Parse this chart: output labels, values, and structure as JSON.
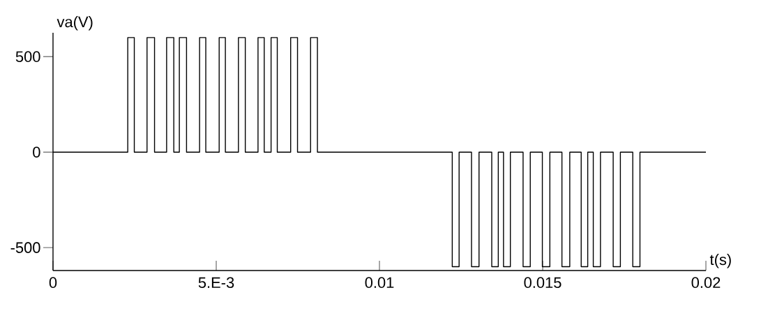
{
  "chart_data": {
    "type": "step",
    "xlabel": "t(s)",
    "ylabel": "va(V)",
    "xlim": [
      0,
      0.02
    ],
    "ylim": [
      -620,
      625
    ],
    "xticks": [
      0,
      {
        "value": 0.005,
        "label": "5.E-3"
      },
      0.01,
      0.015,
      0.02
    ],
    "yticks": [
      -500,
      0,
      500
    ],
    "grid": false,
    "marker": "none",
    "line_style": "solid",
    "series": [
      {
        "color": "#000000",
        "x": [
          0,
          0.00229,
          0.00249,
          0.00288,
          0.00311,
          0.00348,
          0.0037,
          0.00387,
          0.00409,
          0.00449,
          0.00468,
          0.00509,
          0.00528,
          0.00568,
          0.00589,
          0.00628,
          0.00647,
          0.00668,
          0.00687,
          0.00728,
          0.00749,
          0.00789,
          0.0081,
          0.01223,
          0.01244,
          0.01282,
          0.01305,
          0.01344,
          0.01364,
          0.0138,
          0.01401,
          0.0144,
          0.01462,
          0.01499,
          0.01522,
          0.01559,
          0.01583,
          0.01618,
          0.01638,
          0.01655,
          0.01677,
          0.01716,
          0.01738,
          0.01776,
          0.01798,
          0.02
        ],
        "values": [
          0,
          600,
          0,
          600,
          0,
          600,
          0,
          600,
          0,
          600,
          0,
          600,
          0,
          600,
          0,
          600,
          0,
          600,
          0,
          600,
          0,
          600,
          0,
          -600,
          0,
          -600,
          0,
          -600,
          0,
          -600,
          0,
          -600,
          0,
          -600,
          0,
          -600,
          0,
          -600,
          0,
          -600,
          0,
          -600,
          0,
          -600,
          0,
          0
        ]
      }
    ]
  }
}
